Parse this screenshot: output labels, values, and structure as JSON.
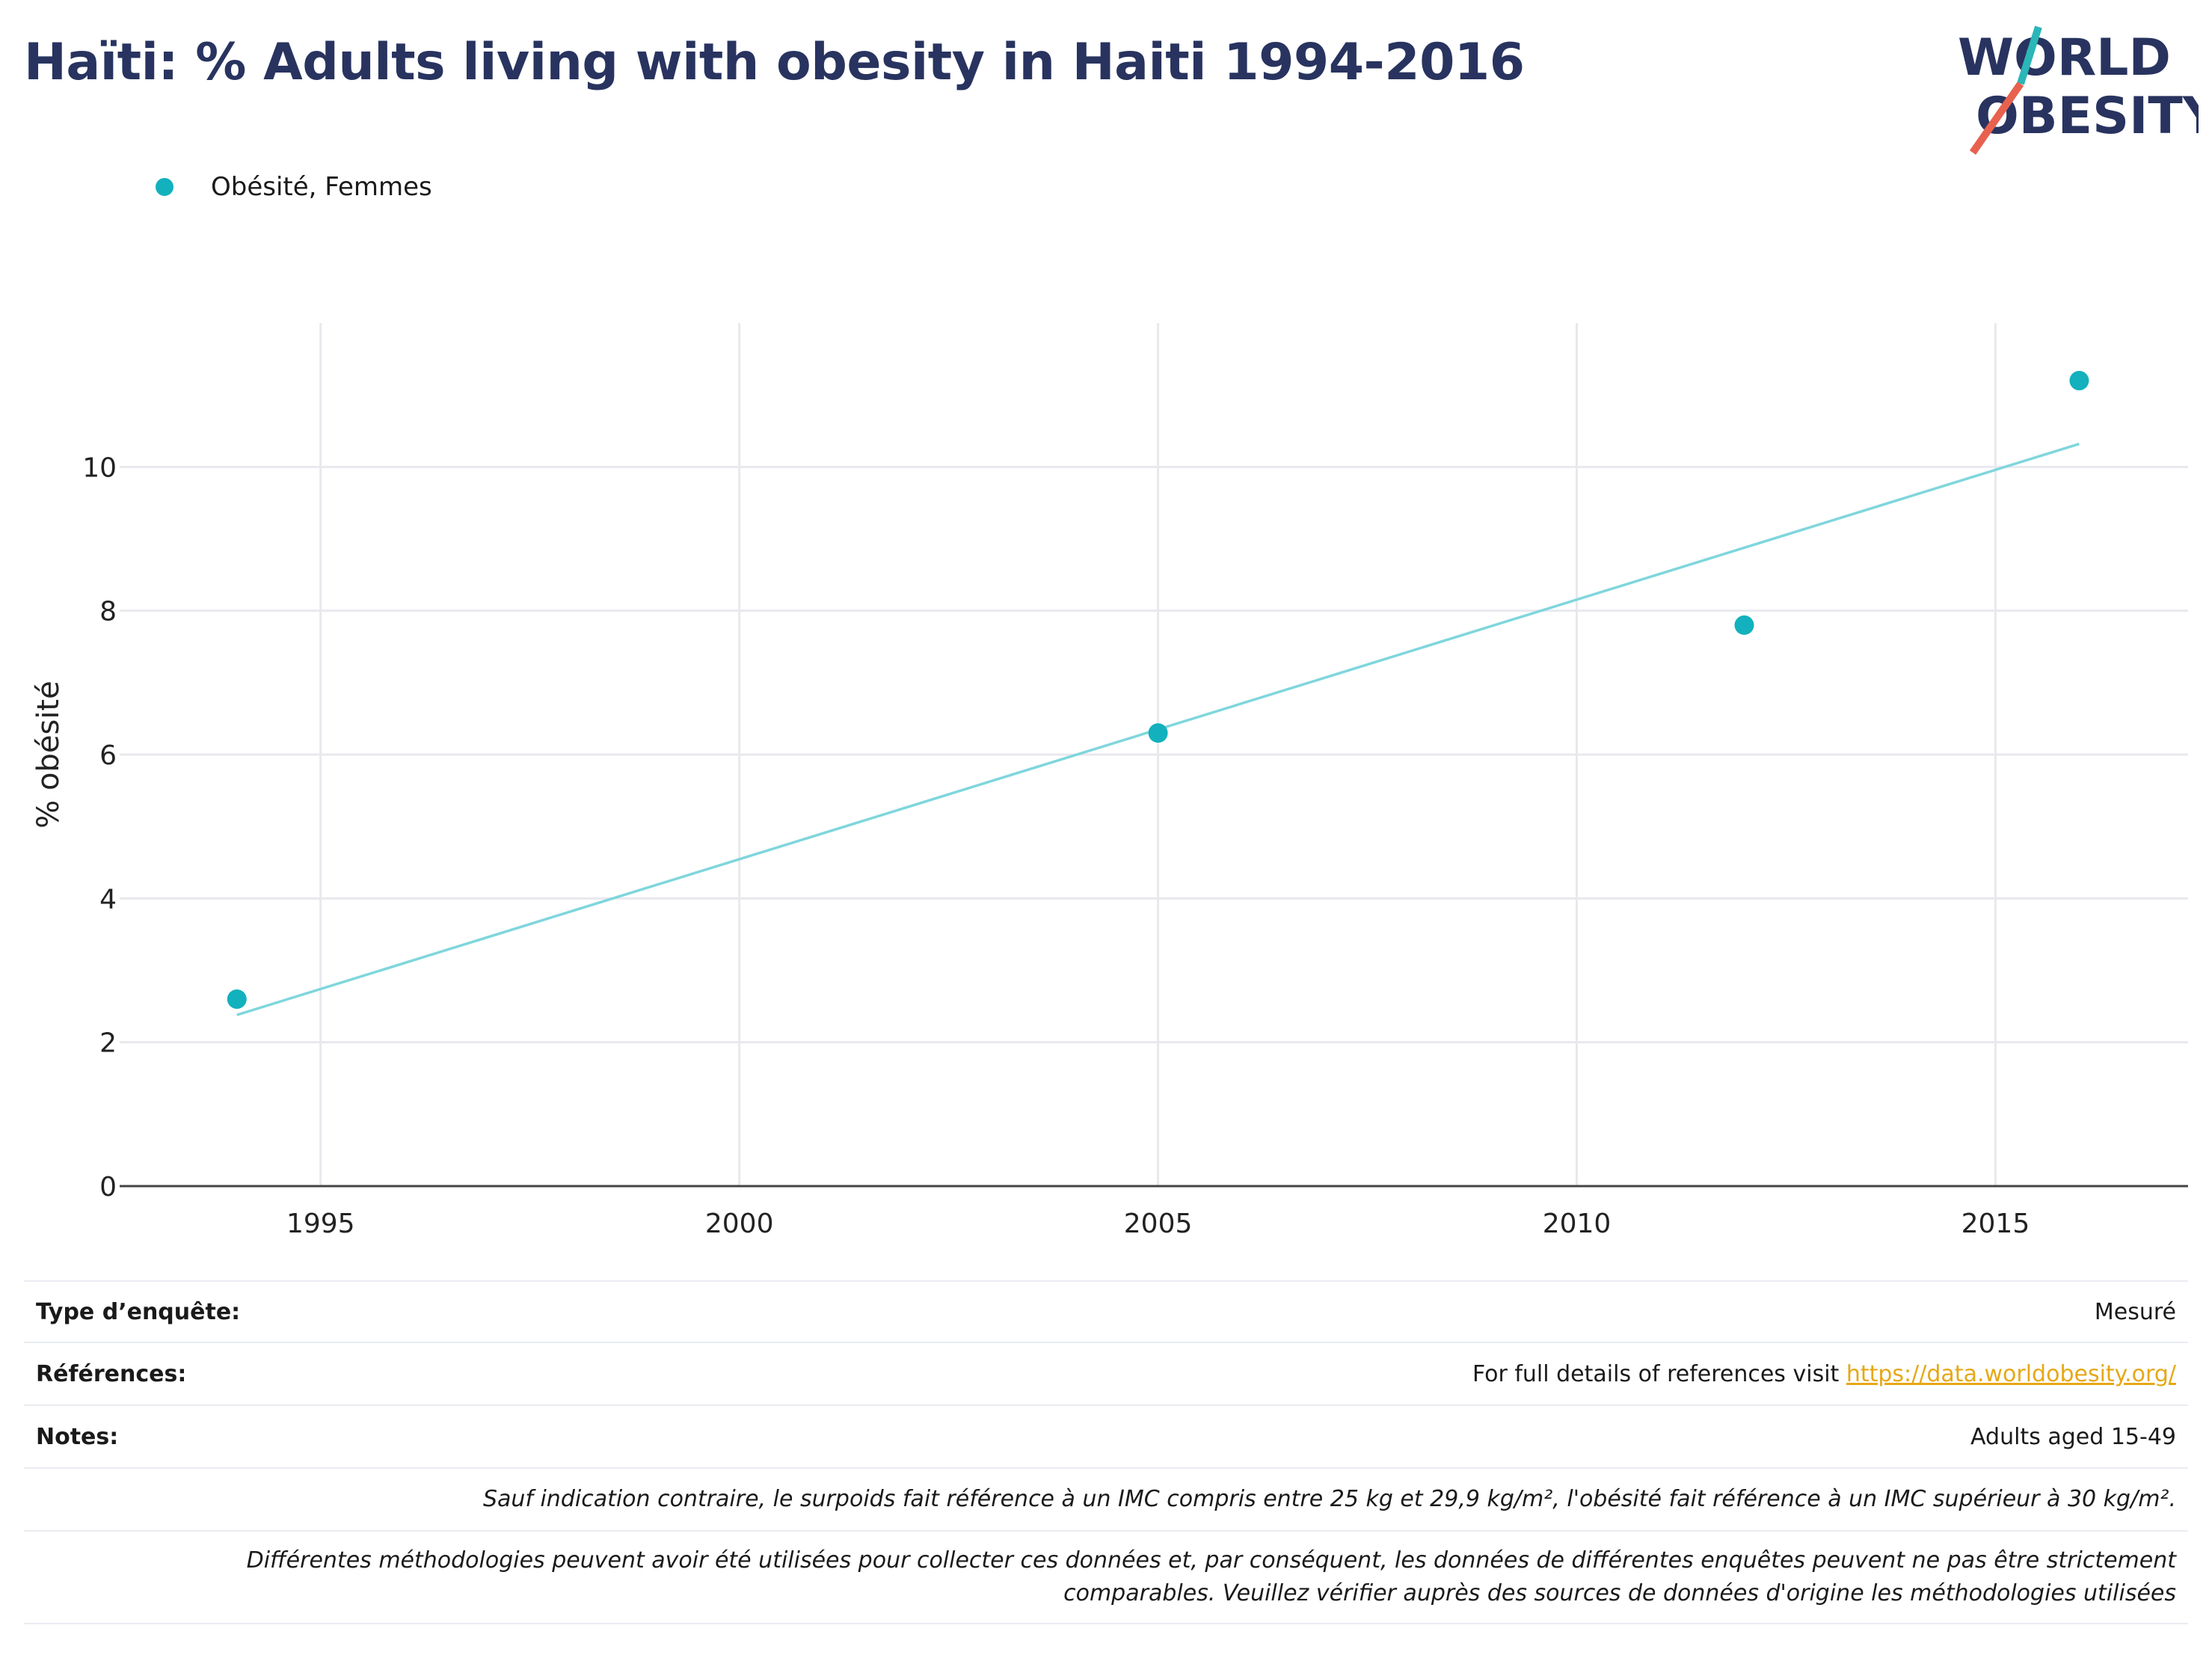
{
  "title": "Haïti: % Adults living with obesity in Haiti 1994-2016",
  "logo": {
    "line1": "WORLD",
    "line2": "OBESITY"
  },
  "colors": {
    "title": "#28335f",
    "series": "#12b1bd",
    "trend": "#7fd6dc",
    "link": "#e6a817",
    "logo_teal": "#2bb6b8",
    "logo_red": "#e8614f"
  },
  "chart_data": {
    "type": "scatter",
    "title": "Haïti: % Adults living with obesity in Haiti 1994-2016",
    "xlabel": "",
    "ylabel": "% obésité",
    "xlim": [
      1992.6,
      2017.3
    ],
    "ylim": [
      0,
      12
    ],
    "x_ticks": [
      1995,
      2000,
      2005,
      2010,
      2015
    ],
    "y_ticks": [
      0,
      2,
      4,
      6,
      8,
      10
    ],
    "grid": true,
    "legend": "top-left",
    "series": [
      {
        "name": "Obésité, Femmes",
        "color": "#12b1bd",
        "x": [
          1994,
          2005,
          2012,
          2016
        ],
        "y": [
          2.6,
          6.3,
          7.8,
          11.2
        ]
      }
    ],
    "trendline": {
      "x": [
        1994,
        2016
      ],
      "y": [
        2.38,
        10.32
      ]
    }
  },
  "info": {
    "survey_type_label": "Type d’enquête:",
    "survey_type_value": "Mesuré",
    "references_label": "Références:",
    "references_text": "For full details of references visit ",
    "references_link": "https://data.worldobesity.org/",
    "notes_label": "Notes:",
    "notes_value": "Adults aged 15-49",
    "note_bmi": "Sauf indication contraire, le surpoids fait référence à un IMC compris entre 25 kg et 29,9 kg/m², l'obésité fait référence à un IMC supérieur à 30 kg/m².",
    "note_methods_line1": "Différentes méthodologies peuvent avoir été utilisées pour collecter ces données et, par conséquent, les données de différentes enquêtes peuvent ne pas être strictement",
    "note_methods_line2": "comparables. Veuillez vérifier auprès des sources de données d'origine les méthodologies utilisées"
  }
}
